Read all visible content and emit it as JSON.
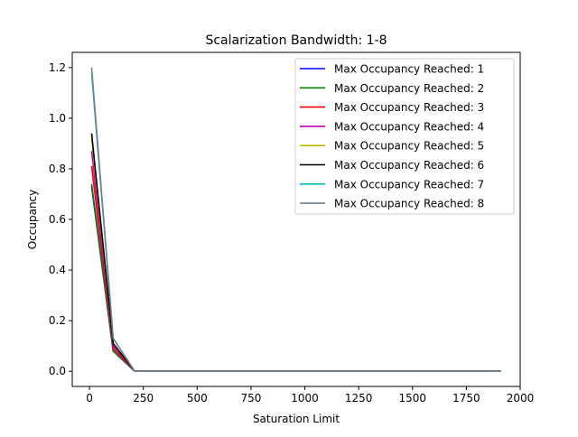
{
  "chart_data": {
    "type": "line",
    "title": "Scalarization Bandwidth: 1-8",
    "xlabel": "Saturation Limit",
    "ylabel": "Occupancy",
    "xlim": [
      -80,
      2000
    ],
    "ylim": [
      -0.06,
      1.26
    ],
    "xticks": [
      0,
      250,
      500,
      750,
      1000,
      1250,
      1500,
      1750,
      2000
    ],
    "yticks": [
      0.0,
      0.2,
      0.4,
      0.6,
      0.8,
      1.0,
      1.2
    ],
    "xtick_labels": [
      "0",
      "250",
      "500",
      "750",
      "1000",
      "1250",
      "1500",
      "1750",
      "2000"
    ],
    "ytick_labels": [
      "0.0",
      "0.2",
      "0.4",
      "0.6",
      "0.8",
      "1.0",
      "1.2"
    ],
    "x": [
      10,
      110,
      210,
      1910
    ],
    "grid": false,
    "legend_position": "top-right",
    "series": [
      {
        "name": "Max Occupancy Reached: 1",
        "color": "#0000ff",
        "values": [
          0.73,
          0.08,
          0.0,
          0.0
        ]
      },
      {
        "name": "Max Occupancy Reached: 2",
        "color": "#008000",
        "values": [
          0.74,
          0.08,
          0.0,
          0.0
        ]
      },
      {
        "name": "Max Occupancy Reached: 3",
        "color": "#ff0000",
        "values": [
          0.81,
          0.09,
          0.0,
          0.0
        ]
      },
      {
        "name": "Max Occupancy Reached: 4",
        "color": "#bf00bf",
        "values": [
          0.87,
          0.1,
          0.0,
          0.0
        ]
      },
      {
        "name": "Max Occupancy Reached: 5",
        "color": "#bfbf00",
        "values": [
          0.92,
          0.11,
          0.0,
          0.0
        ]
      },
      {
        "name": "Max Occupancy Reached: 6",
        "color": "#000000",
        "values": [
          0.94,
          0.11,
          0.0,
          0.0
        ]
      },
      {
        "name": "Max Occupancy Reached: 7",
        "color": "#00bfbf",
        "values": [
          1.18,
          0.13,
          0.0,
          0.0
        ]
      },
      {
        "name": "Max Occupancy Reached: 8",
        "color": "#708090",
        "values": [
          1.2,
          0.13,
          0.0,
          0.0
        ]
      }
    ]
  }
}
